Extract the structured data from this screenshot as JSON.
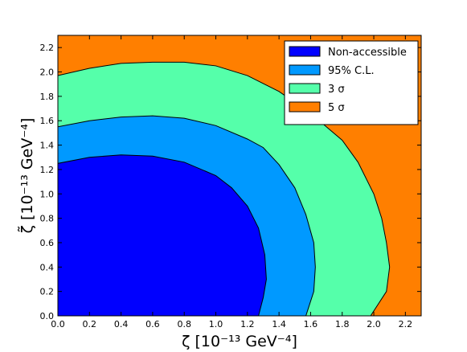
{
  "chart_data": {
    "type": "contour",
    "xlabel": "ζ  [10⁻¹³ GeV⁻⁴]",
    "ylabel": "ζ̃  [10⁻¹³ GeV⁻⁴]",
    "xlim": [
      0.0,
      2.3
    ],
    "ylim": [
      0.0,
      2.3
    ],
    "xticks": [
      0.0,
      0.2,
      0.4,
      0.6,
      0.8,
      1.0,
      1.2,
      1.4,
      1.6,
      1.8,
      2.0,
      2.2
    ],
    "yticks": [
      0.0,
      0.2,
      0.4,
      0.6,
      0.8,
      1.0,
      1.2,
      1.4,
      1.6,
      1.8,
      2.0,
      2.2
    ],
    "tick_labels": [
      "0.0",
      "0.2",
      "0.4",
      "0.6",
      "0.8",
      "1.0",
      "1.2",
      "1.4",
      "1.6",
      "1.8",
      "2.0",
      "2.2"
    ],
    "grid": false,
    "legend_position": "top-right",
    "legend": [
      {
        "label": "Non-accessible",
        "color": "#0000ff"
      },
      {
        "label": "95% C.L.",
        "color": "#0099ff"
      },
      {
        "label": "3 σ",
        "color": "#55ffaa"
      },
      {
        "label": "5 σ",
        "color": "#ff7f00"
      }
    ],
    "background_region": {
      "name": "5 σ",
      "color": "#ff7f00"
    },
    "regions": [
      {
        "name": "3 σ",
        "color": "#55ffaa",
        "boundary": [
          [
            0.0,
            1.97
          ],
          [
            0.2,
            2.03
          ],
          [
            0.4,
            2.07
          ],
          [
            0.6,
            2.08
          ],
          [
            0.8,
            2.08
          ],
          [
            1.0,
            2.05
          ],
          [
            1.2,
            1.97
          ],
          [
            1.4,
            1.84
          ],
          [
            1.6,
            1.66
          ],
          [
            1.8,
            1.44
          ],
          [
            1.9,
            1.26
          ],
          [
            2.0,
            1.0
          ],
          [
            2.05,
            0.8
          ],
          [
            2.08,
            0.6
          ],
          [
            2.1,
            0.4
          ],
          [
            2.08,
            0.2
          ],
          [
            1.98,
            0.0
          ]
        ]
      },
      {
        "name": "95% C.L.",
        "color": "#0099ff",
        "boundary": [
          [
            0.0,
            1.55
          ],
          [
            0.2,
            1.6
          ],
          [
            0.4,
            1.63
          ],
          [
            0.6,
            1.64
          ],
          [
            0.8,
            1.62
          ],
          [
            1.0,
            1.56
          ],
          [
            1.2,
            1.45
          ],
          [
            1.3,
            1.38
          ],
          [
            1.4,
            1.24
          ],
          [
            1.5,
            1.05
          ],
          [
            1.57,
            0.83
          ],
          [
            1.62,
            0.6
          ],
          [
            1.63,
            0.4
          ],
          [
            1.62,
            0.2
          ],
          [
            1.57,
            0.0
          ]
        ]
      },
      {
        "name": "Non-accessible",
        "color": "#0000ff",
        "boundary": [
          [
            0.0,
            1.25
          ],
          [
            0.2,
            1.3
          ],
          [
            0.4,
            1.32
          ],
          [
            0.6,
            1.31
          ],
          [
            0.8,
            1.26
          ],
          [
            1.0,
            1.15
          ],
          [
            1.1,
            1.05
          ],
          [
            1.2,
            0.9
          ],
          [
            1.27,
            0.72
          ],
          [
            1.31,
            0.5
          ],
          [
            1.32,
            0.3
          ],
          [
            1.3,
            0.15
          ],
          [
            1.27,
            0.0
          ]
        ]
      }
    ]
  }
}
